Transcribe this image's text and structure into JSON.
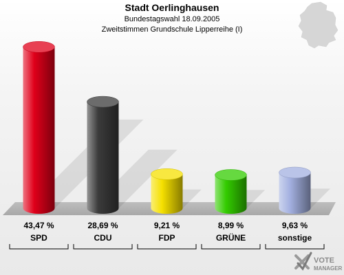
{
  "header": {
    "title": "Stadt Oerlinghausen",
    "subtitle": "Bundestagswahl 18.09.2005",
    "subtitle2": "Zweitstimmen Grundschule Lipperreihe (I)"
  },
  "logo": {
    "line1": "VOTE",
    "line2": "MANAGER"
  },
  "colors": {
    "SPD": "#e0001a",
    "CDU": "#3b3b3b",
    "FDP": "#f5e000",
    "GRÜNE": "#33cc00",
    "sonstige": "#a3b0e0"
  },
  "chart_data": {
    "type": "bar",
    "title": "Stadt Oerlinghausen",
    "categories": [
      "SPD",
      "CDU",
      "FDP",
      "GRÜNE",
      "sonstige"
    ],
    "values": [
      43.47,
      28.69,
      9.21,
      8.99,
      9.63
    ],
    "value_labels": [
      "43,47 %",
      "28,69 %",
      "9,21 %",
      "8,99 %",
      "9,63 %"
    ],
    "ylim": [
      0,
      45
    ],
    "grid": false,
    "legend": "none"
  }
}
